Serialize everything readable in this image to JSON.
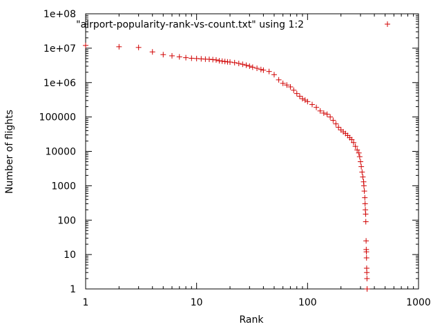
{
  "chart_data": {
    "type": "scatter",
    "title": "",
    "xlabel": "Rank",
    "ylabel": "Number of flights",
    "xscale": "log",
    "yscale": "log",
    "xlim": [
      1,
      1000
    ],
    "ylim": [
      1,
      100000000
    ],
    "x_ticks": [
      1,
      10,
      100,
      1000
    ],
    "x_tick_labels": [
      "1",
      "10",
      "100",
      "1000"
    ],
    "y_ticks": [
      1,
      10,
      100,
      1000,
      10000,
      100000,
      1000000,
      10000000,
      100000000
    ],
    "y_tick_labels": [
      "1",
      "10",
      "100",
      "1000",
      "10000",
      "100000",
      "1e+06",
      "1e+07",
      "1e+08"
    ],
    "grid": false,
    "legend_position": "top-right",
    "marker": "plus",
    "series": [
      {
        "name": "\"airport-popularity-rank-vs-count.txt\" using 1:2",
        "color": "#d00000",
        "points": [
          [
            1,
            12000000
          ],
          [
            2,
            11000000
          ],
          [
            3,
            10500000
          ],
          [
            4,
            7800000
          ],
          [
            5,
            6500000
          ],
          [
            6,
            6000000
          ],
          [
            7,
            5600000
          ],
          [
            8,
            5300000
          ],
          [
            9,
            5100000
          ],
          [
            10,
            5000000
          ],
          [
            11,
            4900000
          ],
          [
            12,
            4800000
          ],
          [
            13,
            4750000
          ],
          [
            14,
            4650000
          ],
          [
            15,
            4550000
          ],
          [
            16,
            4300000
          ],
          [
            17,
            4200000
          ],
          [
            18,
            4100000
          ],
          [
            19,
            4000000
          ],
          [
            20,
            3950000
          ],
          [
            22,
            3800000
          ],
          [
            24,
            3600000
          ],
          [
            26,
            3400000
          ],
          [
            28,
            3200000
          ],
          [
            30,
            3000000
          ],
          [
            32,
            2800000
          ],
          [
            35,
            2600000
          ],
          [
            38,
            2400000
          ],
          [
            40,
            2300000
          ],
          [
            45,
            2100000
          ],
          [
            50,
            1700000
          ],
          [
            55,
            1200000
          ],
          [
            60,
            950000
          ],
          [
            65,
            850000
          ],
          [
            70,
            750000
          ],
          [
            75,
            600000
          ],
          [
            80,
            480000
          ],
          [
            85,
            400000
          ],
          [
            90,
            340000
          ],
          [
            95,
            310000
          ],
          [
            100,
            280000
          ],
          [
            110,
            230000
          ],
          [
            120,
            190000
          ],
          [
            130,
            150000
          ],
          [
            140,
            130000
          ],
          [
            150,
            120000
          ],
          [
            160,
            100000
          ],
          [
            170,
            80000
          ],
          [
            180,
            63000
          ],
          [
            190,
            50000
          ],
          [
            200,
            42000
          ],
          [
            210,
            37000
          ],
          [
            220,
            33000
          ],
          [
            230,
            29000
          ],
          [
            240,
            25000
          ],
          [
            250,
            22000
          ],
          [
            260,
            18000
          ],
          [
            270,
            14000
          ],
          [
            280,
            11000
          ],
          [
            290,
            9000
          ],
          [
            295,
            7000
          ],
          [
            300,
            5000
          ],
          [
            305,
            3600
          ],
          [
            310,
            2500
          ],
          [
            315,
            1800
          ],
          [
            320,
            1300
          ],
          [
            322,
            1000
          ],
          [
            325,
            700
          ],
          [
            328,
            450
          ],
          [
            330,
            300
          ],
          [
            332,
            200
          ],
          [
            334,
            150
          ],
          [
            335,
            90
          ],
          [
            337,
            25
          ],
          [
            338,
            14
          ],
          [
            339,
            12
          ],
          [
            340,
            8
          ],
          [
            341,
            4
          ],
          [
            342,
            3
          ],
          [
            343,
            2
          ],
          [
            344,
            1
          ]
        ]
      }
    ]
  }
}
